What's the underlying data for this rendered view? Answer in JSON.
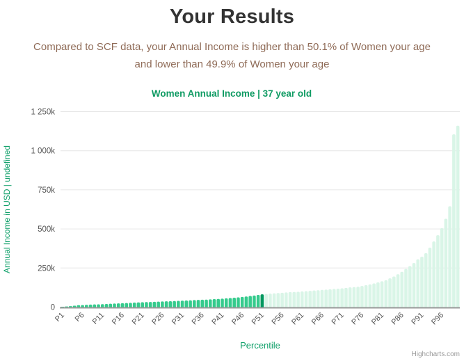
{
  "page": {
    "title": "Your Results",
    "subtitle_line1": "Compared to SCF data, your Annual Income is higher than 50.1% of Women your age",
    "subtitle_line2": "and lower than 49.9% of Women your age"
  },
  "chart_data": {
    "type": "bar",
    "title": "Women Annual Income | 37 year old",
    "xlabel": "Percentile",
    "ylabel": "Annual Income in USD | undefined",
    "credits": "Highcharts.com",
    "ylim": [
      0,
      1250000
    ],
    "y_tick_step": 250000,
    "y_tick_labels": [
      "0",
      "250k",
      "500k",
      "750k",
      "1 000k",
      "1 250k"
    ],
    "x_tick_labels": [
      "P1",
      "P6",
      "P11",
      "P16",
      "P21",
      "P26",
      "P31",
      "P36",
      "P41",
      "P46",
      "P51",
      "P56",
      "P61",
      "P66",
      "P71",
      "P76",
      "P81",
      "P86",
      "P91",
      "P96"
    ],
    "grid": "horizontal",
    "legend": "none",
    "highlight_category": "P51",
    "highlight_value": 82000,
    "categories": [
      "P1",
      "P2",
      "P3",
      "P4",
      "P5",
      "P6",
      "P7",
      "P8",
      "P9",
      "P10",
      "P11",
      "P12",
      "P13",
      "P14",
      "P15",
      "P16",
      "P17",
      "P18",
      "P19",
      "P20",
      "P21",
      "P22",
      "P23",
      "P24",
      "P25",
      "P26",
      "P27",
      "P28",
      "P29",
      "P30",
      "P31",
      "P32",
      "P33",
      "P34",
      "P35",
      "P36",
      "P37",
      "P38",
      "P39",
      "P40",
      "P41",
      "P42",
      "P43",
      "P44",
      "P45",
      "P46",
      "P47",
      "P48",
      "P49",
      "P50",
      "P51",
      "P52",
      "P53",
      "P54",
      "P55",
      "P56",
      "P57",
      "P58",
      "P59",
      "P60",
      "P61",
      "P62",
      "P63",
      "P64",
      "P65",
      "P66",
      "P67",
      "P68",
      "P69",
      "P70",
      "P71",
      "P72",
      "P73",
      "P74",
      "P75",
      "P76",
      "P77",
      "P78",
      "P79",
      "P80",
      "P81",
      "P82",
      "P83",
      "P84",
      "P85",
      "P86",
      "P87",
      "P88",
      "P89",
      "P90",
      "P91",
      "P92",
      "P93",
      "P94",
      "P95",
      "P96",
      "P97",
      "P98",
      "P99",
      "P100"
    ],
    "values": [
      2000,
      4000,
      6000,
      9000,
      12000,
      13000,
      14500,
      16000,
      17000,
      18000,
      19000,
      20000,
      21500,
      23000,
      24000,
      25000,
      26000,
      27500,
      29000,
      30000,
      31000,
      32000,
      33000,
      34000,
      35000,
      36000,
      37000,
      38000,
      39000,
      40000,
      41000,
      42000,
      43500,
      45000,
      46000,
      47000,
      48000,
      49500,
      51000,
      52000,
      54000,
      56000,
      58000,
      60000,
      62000,
      65000,
      68000,
      71000,
      74000,
      78000,
      82000,
      84000,
      86000,
      88000,
      90000,
      92000,
      94000,
      96000,
      97000,
      98000,
      100000,
      102000,
      104000,
      106000,
      108000,
      110000,
      112000,
      114000,
      116000,
      118000,
      120000,
      123000,
      126000,
      128000,
      130000,
      135000,
      140000,
      145000,
      151000,
      158000,
      165000,
      172000,
      184000,
      196000,
      210000,
      226000,
      244000,
      262000,
      282000,
      305000,
      322000,
      345000,
      380000,
      420000,
      460000,
      505000,
      565000,
      645000,
      1105000,
      1160000
    ],
    "colors": {
      "bar_below": "#35cb8d",
      "bar_highlight": "#00985f",
      "bar_above": "#d9f5e7",
      "chart_title": "#0f9b63",
      "axis_title_green": "#10a06a",
      "subtitle_brown": "#8f6b57",
      "page_title": "#333333",
      "tick_label": "#555555",
      "grid_line": "#e6e6e6",
      "axis_line": "#999999",
      "credits": "#999999"
    }
  }
}
